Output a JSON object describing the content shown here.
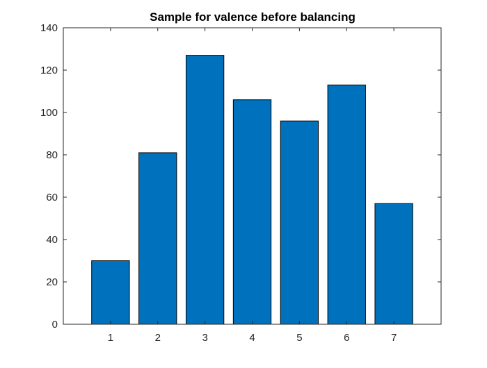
{
  "chart_data": {
    "type": "bar",
    "title": "Sample for valence before balancing",
    "xlabel": "",
    "ylabel": "",
    "categories": [
      "1",
      "2",
      "3",
      "4",
      "5",
      "6",
      "7"
    ],
    "values": [
      30,
      81,
      127,
      106,
      96,
      113,
      57
    ],
    "xlim": [
      0,
      8
    ],
    "ylim": [
      0,
      140
    ],
    "yticks": [
      "0",
      "20",
      "40",
      "60",
      "80",
      "100",
      "120",
      "140"
    ],
    "grid": false,
    "legend": "none",
    "colors": {
      "bar_fill": "#0072BD",
      "bar_edge": "#000000",
      "axes": "#262626",
      "background": "#FFFFFF"
    }
  }
}
